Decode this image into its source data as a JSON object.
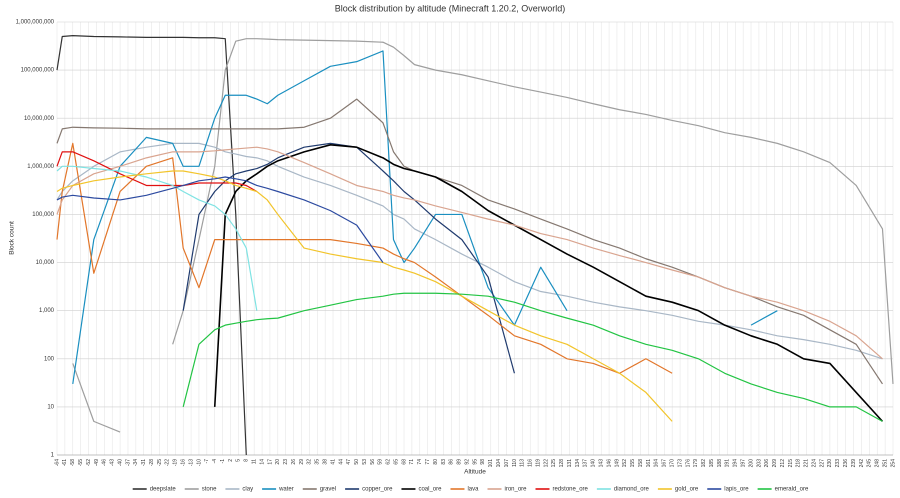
{
  "chart_data": {
    "type": "line",
    "title": "Block distribution by altitude (Minecraft 1.20.2, Overworld)",
    "x_label": "Altitude",
    "y_label": "Block count",
    "log_y": true,
    "grid": true,
    "legend": "bottom",
    "x": [
      -64,
      -62,
      -58,
      -50,
      -40,
      -30,
      -20,
      -16,
      -10,
      -4,
      0,
      4,
      8,
      12,
      16,
      20,
      30,
      40,
      50,
      60,
      64,
      68,
      72,
      80,
      90,
      100,
      110,
      120,
      130,
      140,
      150,
      160,
      170,
      180,
      190,
      200,
      210,
      220,
      230,
      240,
      250,
      254
    ],
    "xlim": [
      -64,
      254
    ],
    "xticks": [
      -64,
      -61,
      -58,
      -55,
      -52,
      -49,
      -46,
      -43,
      -40,
      -37,
      -34,
      -31,
      -28,
      -25,
      -22,
      -19,
      -16,
      -13,
      -10,
      -7,
      -4,
      -1,
      2,
      5,
      8,
      11,
      14,
      17,
      20,
      23,
      26,
      29,
      32,
      35,
      38,
      41,
      44,
      47,
      50,
      53,
      56,
      59,
      62,
      65,
      68,
      71,
      74,
      77,
      80,
      83,
      86,
      89,
      92,
      95,
      98,
      101,
      104,
      107,
      110,
      113,
      116,
      119,
      122,
      125,
      128,
      131,
      134,
      137,
      140,
      143,
      146,
      149,
      152,
      155,
      158,
      161,
      164,
      167,
      170,
      173,
      176,
      179,
      182,
      185,
      188,
      191,
      194,
      197,
      200,
      203,
      206,
      209,
      212,
      215,
      218,
      221,
      224,
      227,
      230,
      233,
      236,
      239,
      242,
      245,
      248,
      251,
      254
    ],
    "ylim": [
      1,
      1000000000
    ],
    "yticks": [
      1,
      10,
      100,
      {
        "value": 1000,
        "label": "1,000"
      },
      {
        "value": 10000,
        "label": "10,000"
      },
      {
        "value": 100000,
        "label": "100,000"
      },
      {
        "value": 1000000,
        "label": "1,000,000"
      },
      {
        "value": 10000000,
        "label": "10,000,000"
      },
      {
        "value": 100000000,
        "label": "100,000,000"
      },
      {
        "value": 1000000000,
        "label": "1,000,000,000"
      }
    ],
    "series": [
      {
        "name": "deepslate",
        "color": "#333333",
        "values": [
          100000000.0,
          500000000.0,
          520000000.0,
          500000000.0,
          490000000.0,
          480000000.0,
          480000000.0,
          480000000.0,
          470000000.0,
          470000000.0,
          450000000.0,
          100000.0,
          1,
          null,
          null,
          null,
          null,
          null,
          null,
          null,
          null,
          null,
          null,
          null,
          null,
          null,
          null,
          null,
          null,
          null,
          null,
          null,
          null,
          null,
          null,
          null,
          null,
          null,
          null,
          null,
          null,
          null
        ]
      },
      {
        "name": "stone",
        "color": "#9e9e9e",
        "values": [
          null,
          null,
          80,
          5,
          3,
          null,
          200,
          1000,
          30000,
          1000000.0,
          100000000.0,
          400000000.0,
          450000000.0,
          450000000.0,
          440000000.0,
          430000000.0,
          420000000.0,
          410000000.0,
          400000000.0,
          380000000.0,
          300000000.0,
          200000000.0,
          130000000.0,
          100000000.0,
          80000000.0,
          60000000.0,
          45000000.0,
          35000000.0,
          27000000.0,
          20000000.0,
          15000000.0,
          12000000.0,
          9000000.0,
          7000000.0,
          5000000.0,
          4000000.0,
          3000000.0,
          2000000.0,
          1200000.0,
          400000.0,
          50000.0,
          30
        ]
      },
      {
        "name": "clay",
        "color": "#a9b7c6",
        "values": [
          200000.0,
          300000.0,
          500000.0,
          1000000.0,
          2000000.0,
          2500000.0,
          3000000.0,
          3000000.0,
          3000000.0,
          2500000.0,
          2000000.0,
          1800000.0,
          1600000.0,
          1500000.0,
          1300000.0,
          1000000.0,
          600000.0,
          400000.0,
          250000.0,
          150000.0,
          100000.0,
          80000.0,
          50000.0,
          30000.0,
          15000.0,
          8000.0,
          4000.0,
          2500.0,
          2000.0,
          1500.0,
          1200.0,
          1000.0,
          800,
          600,
          500,
          400,
          300,
          250,
          200,
          150,
          100,
          null
        ]
      },
      {
        "name": "water",
        "color": "#1a8fc0",
        "values": [
          null,
          null,
          30,
          30000.0,
          1000000.0,
          4000000.0,
          3000000.0,
          1000000.0,
          1000000.0,
          10000000.0,
          30000000.0,
          30000000.0,
          30000000.0,
          25000000.0,
          20000000.0,
          30000000.0,
          60000000.0,
          120000000.0,
          150000000.0,
          250000000.0,
          30000.0,
          10000.0,
          20000.0,
          100000.0,
          100000.0,
          3000.0,
          500,
          8000.0,
          1000.0,
          null,
          null,
          null,
          null,
          null,
          null,
          500,
          1000.0,
          null,
          null,
          null,
          null,
          null
        ]
      },
      {
        "name": "gravel",
        "color": "#857870",
        "values": [
          3000000.0,
          6000000.0,
          6500000.0,
          6300000.0,
          6200000.0,
          6000000.0,
          6000000.0,
          6000000.0,
          6000000.0,
          6000000.0,
          6000000.0,
          6000000.0,
          6000000.0,
          6000000.0,
          6000000.0,
          6000000.0,
          6500000.0,
          10000000.0,
          25000000.0,
          8000000.0,
          2000000.0,
          1000000.0,
          800000.0,
          600000.0,
          400000.0,
          200000.0,
          130000.0,
          80000.0,
          50000.0,
          30000.0,
          20000.0,
          12000.0,
          8000.0,
          5000.0,
          3000.0,
          2000.0,
          1200.0,
          800,
          400,
          200,
          30,
          null
        ]
      },
      {
        "name": "copper_ore",
        "color": "#1f3a6e",
        "values": [
          null,
          null,
          null,
          null,
          null,
          null,
          null,
          1000.0,
          100000.0,
          300000.0,
          500000.0,
          700000.0,
          800000.0,
          900000.0,
          1100000.0,
          1500000.0,
          2500000.0,
          3000000.0,
          2500000.0,
          800000.0,
          500000.0,
          300000.0,
          200000.0,
          80000.0,
          30000.0,
          5000.0,
          50,
          null,
          null,
          null,
          null,
          null,
          null,
          null,
          null,
          null,
          null,
          null,
          null,
          null,
          null,
          null
        ]
      },
      {
        "name": "coal_ore",
        "color": "#000000",
        "values": [
          null,
          null,
          null,
          null,
          null,
          null,
          null,
          null,
          null,
          10,
          100000.0,
          300000.0,
          500000.0,
          700000.0,
          1000000.0,
          1300000.0,
          2000000.0,
          2800000.0,
          2500000.0,
          1500000.0,
          1100000.0,
          900000.0,
          800000.0,
          600000.0,
          300000.0,
          120000.0,
          60000.0,
          30000.0,
          15000.0,
          8000.0,
          4000.0,
          2000.0,
          1500.0,
          1000.0,
          500,
          300,
          200,
          100,
          80,
          20,
          5,
          null
        ]
      },
      {
        "name": "lava",
        "color": "#e2762a",
        "values": [
          30000.0,
          300000.0,
          3000000.0,
          6000.0,
          300000.0,
          1000000.0,
          1500000.0,
          20000.0,
          3000.0,
          30000.0,
          30000.0,
          30000.0,
          30000.0,
          30000.0,
          30000.0,
          30000.0,
          30000.0,
          30000.0,
          25000.0,
          20000.0,
          15000.0,
          12000.0,
          10000.0,
          5000.0,
          2000.0,
          800,
          300,
          200,
          100,
          80,
          50,
          100,
          50,
          null,
          null,
          null,
          null,
          null,
          null,
          null,
          null,
          null
        ]
      },
      {
        "name": "iron_ore",
        "color": "#d9a48f",
        "values": [
          100000.0,
          200000.0,
          400000.0,
          700000.0,
          1000000.0,
          1500000.0,
          2000000.0,
          2000000.0,
          2000000.0,
          2100000.0,
          2200000.0,
          2300000.0,
          2400000.0,
          2500000.0,
          2300000.0,
          2000000.0,
          1200000.0,
          700000.0,
          400000.0,
          300000.0,
          250000.0,
          220000.0,
          200000.0,
          150000.0,
          110000.0,
          80000.0,
          60000.0,
          40000.0,
          30000.0,
          20000.0,
          14000.0,
          10000.0,
          7000.0,
          5000.0,
          3000.0,
          2000.0,
          1500.0,
          1000.0,
          600,
          300,
          100,
          null
        ]
      },
      {
        "name": "redstone_ore",
        "color": "#e01010",
        "values": [
          1000000.0,
          2000000.0,
          2000000.0,
          1300000.0,
          700000.0,
          400000.0,
          400000.0,
          400000.0,
          450000.0,
          450000.0,
          450000.0,
          450000.0,
          400000.0,
          300000.0,
          null,
          null,
          null,
          null,
          null,
          null,
          null,
          null,
          null,
          null,
          null,
          null,
          null,
          null,
          null,
          null,
          null,
          null,
          null,
          null,
          null,
          null,
          null,
          null,
          null,
          null,
          null,
          null
        ]
      },
      {
        "name": "diamond_ore",
        "color": "#7fe3e3",
        "values": [
          800000.0,
          1000000.0,
          1000000.0,
          900000.0,
          800000.0,
          600000.0,
          400000.0,
          300000.0,
          200000.0,
          150000.0,
          100000.0,
          50000.0,
          20000.0,
          1000.0,
          null,
          null,
          null,
          null,
          null,
          null,
          null,
          null,
          null,
          null,
          null,
          null,
          null,
          null,
          null,
          null,
          null,
          null,
          null,
          null,
          null,
          null,
          null,
          null,
          null,
          null,
          null,
          null
        ]
      },
      {
        "name": "gold_ore",
        "color": "#f2c42a",
        "values": [
          300000.0,
          350000.0,
          400000.0,
          500000.0,
          600000.0,
          700000.0,
          800000.0,
          800000.0,
          700000.0,
          600000.0,
          500000.0,
          400000.0,
          350000.0,
          300000.0,
          200000.0,
          100000.0,
          20000.0,
          15000.0,
          12000.0,
          10000.0,
          8000.0,
          7000.0,
          6000.0,
          4000.0,
          2000.0,
          1000.0,
          500,
          300,
          200,
          100,
          50,
          20,
          5,
          null,
          null,
          null,
          null,
          null,
          null,
          null,
          null,
          null
        ]
      },
      {
        "name": "lapis_ore",
        "color": "#2c4aa0",
        "values": [
          200000.0,
          230000.0,
          250000.0,
          220000.0,
          200000.0,
          250000.0,
          350000.0,
          400000.0,
          500000.0,
          550000.0,
          600000.0,
          550000.0,
          500000.0,
          400000.0,
          350000.0,
          300000.0,
          200000.0,
          120000.0,
          60000.0,
          10000.0,
          null,
          null,
          null,
          null,
          null,
          null,
          null,
          null,
          null,
          null,
          null,
          null,
          null,
          null,
          null,
          null,
          null,
          null,
          null,
          null,
          null,
          null
        ]
      },
      {
        "name": "emerald_ore",
        "color": "#22c443",
        "values": [
          null,
          null,
          null,
          null,
          null,
          null,
          null,
          10,
          200,
          400,
          500,
          550,
          600,
          650,
          680,
          700,
          1000.0,
          1300.0,
          1700.0,
          2000.0,
          2200.0,
          2300.0,
          2300.0,
          2300.0,
          2200.0,
          2000.0,
          1500.0,
          1000.0,
          700,
          500,
          300,
          200,
          150,
          100,
          50,
          30,
          20,
          15,
          10,
          10,
          5,
          null
        ]
      }
    ]
  }
}
